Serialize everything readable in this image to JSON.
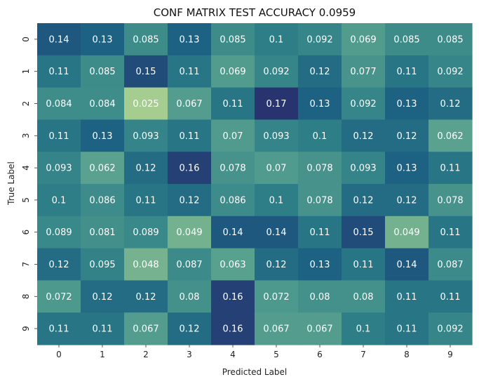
{
  "chart_data": {
    "type": "heatmap",
    "title": "CONF MATRIX TEST ACCURACY 0.0959",
    "xlabel": "Predicted Label",
    "ylabel": "True Label",
    "x_categories": [
      "0",
      "1",
      "2",
      "3",
      "4",
      "5",
      "6",
      "7",
      "8",
      "9"
    ],
    "y_categories": [
      "0",
      "1",
      "2",
      "3",
      "4",
      "5",
      "6",
      "7",
      "8",
      "9"
    ],
    "values": [
      [
        0.14,
        0.13,
        0.085,
        0.13,
        0.085,
        0.1,
        0.092,
        0.069,
        0.085,
        0.085
      ],
      [
        0.11,
        0.085,
        0.15,
        0.11,
        0.069,
        0.092,
        0.12,
        0.077,
        0.11,
        0.092
      ],
      [
        0.084,
        0.084,
        0.025,
        0.067,
        0.11,
        0.17,
        0.13,
        0.092,
        0.13,
        0.12
      ],
      [
        0.11,
        0.13,
        0.093,
        0.11,
        0.07,
        0.093,
        0.1,
        0.12,
        0.12,
        0.062
      ],
      [
        0.093,
        0.062,
        0.12,
        0.16,
        0.078,
        0.07,
        0.078,
        0.093,
        0.13,
        0.11
      ],
      [
        0.1,
        0.086,
        0.11,
        0.12,
        0.086,
        0.1,
        0.078,
        0.12,
        0.12,
        0.078
      ],
      [
        0.089,
        0.081,
        0.089,
        0.049,
        0.14,
        0.14,
        0.11,
        0.15,
        0.049,
        0.11
      ],
      [
        0.12,
        0.095,
        0.048,
        0.087,
        0.063,
        0.12,
        0.13,
        0.11,
        0.14,
        0.087
      ],
      [
        0.072,
        0.12,
        0.12,
        0.08,
        0.16,
        0.072,
        0.08,
        0.08,
        0.11,
        0.11
      ],
      [
        0.11,
        0.11,
        0.067,
        0.12,
        0.16,
        0.067,
        0.067,
        0.1,
        0.11,
        0.092
      ]
    ],
    "colormap": "crest",
    "colorbar": false,
    "value_range": [
      0.025,
      0.17
    ],
    "annotation_color": "#ffffff",
    "colorscale_stops": [
      "#a5cd90",
      "#5ba38f",
      "#2f8088",
      "#1c5f82",
      "#27346f"
    ]
  }
}
